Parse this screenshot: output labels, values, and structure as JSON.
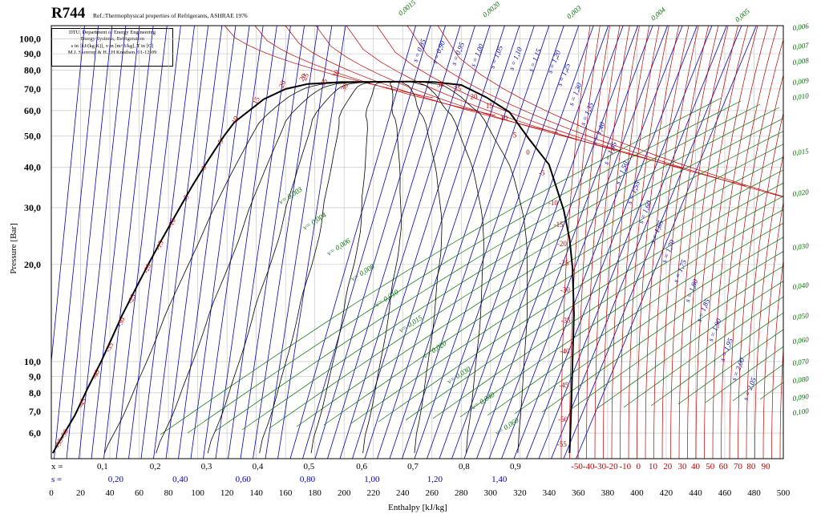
{
  "title": "R744",
  "reference": "Ref.:Thermophysical properties of Refrigerants, ASHRAE 1976",
  "info": {
    "line1": "DTU, Department of Energy Engineering",
    "line2": "Energy Systems, Refrigeration",
    "line3": "s in [kJ/(kg K)], v in [m^3/kg], T in [C]",
    "line4": "M.J. Skovrup & H.J.H Knudsen. 01-12-09"
  },
  "colors": {
    "axis": "#000000",
    "grid": "#c8c8c8",
    "saturation": "#000000",
    "quality": "#000000",
    "isotherm": "#c00000",
    "isentrope": "#0000c0",
    "isochore": "#007000",
    "s_axis": "#0000c0",
    "t_axis": "#c00000"
  },
  "chart_data": {
    "type": "line",
    "title": "R744",
    "xlabel": "Enthalpy [kJ/kg]",
    "ylabel": "Pressure [Bar]",
    "yscale": "log",
    "xlim": [
      0,
      500
    ],
    "ylim": [
      5.0,
      110.0
    ],
    "grid": true,
    "x_ticks": [
      "0",
      "20",
      "40",
      "60",
      "80",
      "100",
      "120",
      "140",
      "160",
      "180",
      "200",
      "220",
      "240",
      "260",
      "280",
      "300",
      "320",
      "340",
      "360",
      "380",
      "400",
      "420",
      "440",
      "460",
      "480",
      "500"
    ],
    "y_ticks": [
      {
        "value": 6,
        "label": "6,0"
      },
      {
        "value": 7,
        "label": "7,0"
      },
      {
        "value": 8,
        "label": "8,0"
      },
      {
        "value": 9,
        "label": "9,0"
      },
      {
        "value": 10,
        "label": "10,0"
      },
      {
        "value": 20,
        "label": "20,0"
      },
      {
        "value": 30,
        "label": "30,0"
      },
      {
        "value": 40,
        "label": "40,0"
      },
      {
        "value": 50,
        "label": "50,0"
      },
      {
        "value": 60,
        "label": "60,0"
      },
      {
        "value": 70,
        "label": "70,0"
      },
      {
        "value": 80,
        "label": "80,0"
      },
      {
        "value": 90,
        "label": "90,0"
      },
      {
        "value": 100,
        "label": "100,0"
      }
    ],
    "x_quality_prefix": "x =",
    "x_quality_ticks": [
      {
        "label": "0,1",
        "h": 35
      },
      {
        "label": "0,2",
        "h": 71
      },
      {
        "label": "0,3",
        "h": 106
      },
      {
        "label": "0,4",
        "h": 141
      },
      {
        "label": "0,5",
        "h": 176
      },
      {
        "label": "0,6",
        "h": 212
      },
      {
        "label": "0,7",
        "h": 247
      },
      {
        "label": "0,8",
        "h": 282
      },
      {
        "label": "0,9",
        "h": 317
      }
    ],
    "s_prefix": "s =",
    "s_ticks": [
      {
        "label": "0,20",
        "h": 44
      },
      {
        "label": "0,40",
        "h": 88
      },
      {
        "label": "0,60",
        "h": 131
      },
      {
        "label": "0,80",
        "h": 175
      },
      {
        "label": "1,00",
        "h": 219
      },
      {
        "label": "1,20",
        "h": 262
      },
      {
        "label": "1,40",
        "h": 306
      }
    ],
    "t_ticks": [
      {
        "label": "-50",
        "h": 359
      },
      {
        "label": "-40",
        "h": 367
      },
      {
        "label": "-30",
        "h": 375
      },
      {
        "label": "-20",
        "h": 383
      },
      {
        "label": "-10",
        "h": 392
      },
      {
        "label": "0",
        "h": 401
      },
      {
        "label": "10",
        "h": 411
      },
      {
        "label": "20",
        "h": 421
      },
      {
        "label": "30",
        "h": 431
      },
      {
        "label": "40",
        "h": 440
      },
      {
        "label": "50",
        "h": 450
      },
      {
        "label": "60",
        "h": 459
      },
      {
        "label": "70",
        "h": 469
      },
      {
        "label": "80",
        "h": 478
      },
      {
        "label": "90",
        "h": 488
      }
    ],
    "saturation_liquid": [
      [
        1,
        5.2
      ],
      [
        4,
        5.5
      ],
      [
        16,
        6.8
      ],
      [
        25,
        8.3
      ],
      [
        34,
        10.0
      ],
      [
        42,
        12.0
      ],
      [
        48,
        13.8
      ],
      [
        59,
        17.3
      ],
      [
        67,
        20.3
      ],
      [
        75,
        23.7
      ],
      [
        83,
        27.5
      ],
      [
        96,
        34.9
      ],
      [
        107,
        42.0
      ],
      [
        118,
        50.1
      ],
      [
        125,
        55.2
      ],
      [
        145,
        65.0
      ],
      [
        160,
        70.0
      ],
      [
        175,
        72.5
      ],
      [
        198,
        73.5
      ],
      [
        246,
        73.8
      ]
    ],
    "saturation_vapor": [
      [
        246,
        73.8
      ],
      [
        262,
        73.5
      ],
      [
        280,
        72.0
      ],
      [
        297,
        66.0
      ],
      [
        313,
        59.3
      ],
      [
        326,
        49.2
      ],
      [
        340,
        40.8
      ],
      [
        350,
        29.5
      ],
      [
        354,
        24.0
      ],
      [
        356,
        19.5
      ],
      [
        357,
        14.0
      ],
      [
        356,
        10.0
      ],
      [
        355,
        6.8
      ],
      [
        354,
        5.2
      ]
    ],
    "sat_liquid_temp_labels": [
      "-55",
      "-50",
      "-45",
      "-40",
      "-35",
      "-30",
      "-25",
      "-20",
      "-15",
      "-10",
      "-5",
      "0",
      "5",
      "10",
      "15",
      "20",
      "25",
      "30"
    ],
    "sat_vapor_temp_labels": [
      "30",
      "25",
      "20",
      "15",
      "10",
      "5",
      "0",
      "-5",
      "-10",
      "-15",
      "-20",
      "-25",
      "-30",
      "-35",
      "-40",
      "-45",
      "-50",
      "-55"
    ],
    "quality_lines": [
      "0,1",
      "0,2",
      "0,3",
      "0,4",
      "0,5",
      "0,6",
      "0,7",
      "0,8",
      "0,9"
    ],
    "isentrope_labels": [
      "s = 0,85",
      "s = 0,90",
      "s = 0,95",
      "s = 1,00",
      "s = 1,05",
      "s = 1,10",
      "s = 1,15",
      "s = 1,20",
      "s = 1,25",
      "s = 1,30",
      "s = 1,35",
      "s = 1,40",
      "s = 1,45",
      "s = 1,50",
      "s = 1,55",
      "s = 1,60",
      "s = 1,65",
      "s = 1,70",
      "s = 1,75",
      "s = 1,80",
      "s = 1,85",
      "s = 1,90",
      "s = 1,95",
      "s = 2,00",
      "s = 2,05"
    ],
    "isochore_labels_inside": [
      "v= 0,003",
      "v= 0,004",
      "v= 0,006",
      "v= 0,008",
      "v= 0,010",
      "v= 0,015",
      "v= 0,020",
      "v= 0,030",
      "v= 0,040",
      "v= 0,060"
    ],
    "isochore_labels_top": [
      "0,0015",
      "0,0020",
      "0,003",
      "0,004",
      "0,005"
    ],
    "isochore_labels_right": [
      "0,006",
      "0,007",
      "0,008",
      "0,009",
      "0,010",
      "0,015",
      "0,020",
      "0,030",
      "0,040",
      "0,050",
      "0,060",
      "0,070",
      "0,080",
      "0,090",
      "0,100"
    ],
    "isotherm_labels_supercritical": [
      "20",
      "25",
      "30"
    ]
  }
}
